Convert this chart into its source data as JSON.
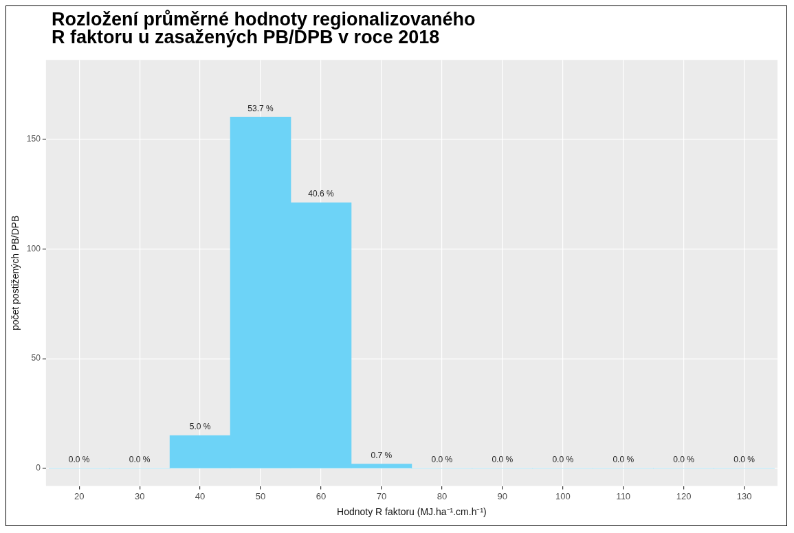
{
  "chart_data": {
    "type": "histogram",
    "title": "Rozložení průměrné hodnoty regionalizovaného\nR faktoru u zasažených PB/DPB v roce 2018",
    "xlabel": "Hodnoty R faktoru (MJ.ha⁻¹.cm.h⁻¹)",
    "ylabel": "počet postižených PB/DPB",
    "bins": [
      15,
      25,
      35,
      45,
      55,
      65,
      75,
      85,
      95,
      105,
      115,
      125,
      135
    ],
    "values": [
      0,
      0,
      15,
      160,
      121,
      2,
      0,
      0,
      0,
      0,
      0,
      0
    ],
    "annotations": [
      {
        "text": "0.0 %",
        "x": 20,
        "y": 0
      },
      {
        "text": "0.0 %",
        "x": 30,
        "y": 0
      },
      {
        "text": "5.0 %",
        "x": 40,
        "y": 15
      },
      {
        "text": "53.7 %",
        "x": 50,
        "y": 160
      },
      {
        "text": "40.6 %",
        "x": 60,
        "y": 121
      },
      {
        "text": "0.7 %",
        "x": 70,
        "y": 2
      },
      {
        "text": "0.0 %",
        "x": 80,
        "y": 0
      },
      {
        "text": "0.0 %",
        "x": 90,
        "y": 0
      },
      {
        "text": "0.0 %",
        "x": 100,
        "y": 0
      },
      {
        "text": "0.0 %",
        "x": 110,
        "y": 0
      },
      {
        "text": "0.0 %",
        "x": 120,
        "y": 0
      },
      {
        "text": "0.0 %",
        "x": 130,
        "y": 0
      }
    ],
    "color": "#6dd3f7",
    "xlim": [
      14.5,
      135.5
    ],
    "xticks": [
      20,
      30,
      40,
      50,
      60,
      70,
      80,
      90,
      100,
      110,
      120,
      130
    ],
    "ylim": [
      -8,
      186
    ],
    "yticks": [
      0,
      50,
      100,
      150
    ],
    "grid": true
  }
}
